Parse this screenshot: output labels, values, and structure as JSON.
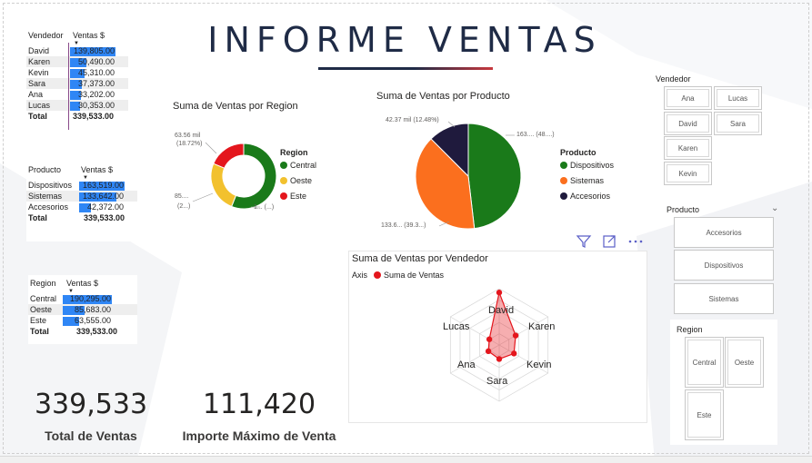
{
  "title": "INFORME VENTAS",
  "vendedor_table": {
    "col1": "Vendedor",
    "col2": "Ventas $",
    "rows": [
      {
        "label": "David",
        "value": "139,805.00",
        "frac": 1.0
      },
      {
        "label": "Karen",
        "value": "50,490.00",
        "frac": 0.361
      },
      {
        "label": "Kevin",
        "value": "45,310.00",
        "frac": 0.324
      },
      {
        "label": "Sara",
        "value": "37,373.00",
        "frac": 0.267
      },
      {
        "label": "Ana",
        "value": "33,202.00",
        "frac": 0.237
      },
      {
        "label": "Lucas",
        "value": "30,353.00",
        "frac": 0.217
      }
    ],
    "total_label": "Total",
    "total_value": "339,533.00"
  },
  "producto_table": {
    "col1": "Producto",
    "col2": "Ventas $",
    "rows": [
      {
        "label": "Dispositivos",
        "value": "163,519.00",
        "frac": 1.0
      },
      {
        "label": "Sistemas",
        "value": "133,642.00",
        "frac": 0.817
      },
      {
        "label": "Accesorios",
        "value": "42,372.00",
        "frac": 0.259
      }
    ],
    "total_label": "Total",
    "total_value": "339,533.00"
  },
  "region_table": {
    "col1": "Region",
    "col2": "Ventas $",
    "rows": [
      {
        "label": "Central",
        "value": "190,295.00",
        "frac": 1.0
      },
      {
        "label": "Oeste",
        "value": "85,683.00",
        "frac": 0.45
      },
      {
        "label": "Este",
        "value": "63,555.00",
        "frac": 0.334
      }
    ],
    "total_label": "Total",
    "total_value": "339,533.00"
  },
  "region_chart": {
    "title": "Suma de Ventas por Region",
    "legend_title": "Region",
    "label_este": "63.56 mil",
    "label_este_pct": "(18.72%)",
    "label_oeste": "85....",
    "label_oeste_pct": "(2...)",
    "label_central": "1... (...)"
  },
  "producto_chart": {
    "title": "Suma de Ventas por Producto",
    "legend_title": "Producto",
    "label_accesorios": "42.37 mil (12.48%)",
    "label_dispositivos": "163.... (48....)",
    "label_sistemas": "133.6... (39.3...)"
  },
  "radar_chart": {
    "title": "Suma de Ventas por Vendedor",
    "legend_axis": "Axis",
    "legend_series": "Suma de Ventas"
  },
  "cards": [
    {
      "value": "339,533",
      "label": "Total de Ventas"
    },
    {
      "value": "111,420",
      "label": "Importe Máximo de Venta"
    }
  ],
  "slicers": {
    "vendedor_title": "Vendedor",
    "vendedor_items": [
      "Ana",
      "Lucas",
      "David",
      "Sara",
      "Karen",
      "Kevin"
    ],
    "producto_title": "Producto",
    "producto_items": [
      "Accesorios",
      "Dispositivos",
      "Sistemas"
    ],
    "region_title": "Region",
    "region_items": [
      "Central",
      "Oeste",
      "Este"
    ]
  },
  "chart_data": [
    {
      "type": "pie",
      "title": "Suma de Ventas por Region",
      "categories": [
        "Central",
        "Oeste",
        "Este"
      ],
      "values": [
        190295,
        85683,
        63555
      ],
      "colors": [
        "#1a7a1a",
        "#f2c12e",
        "#e4161d"
      ],
      "legend": "right",
      "donut": true
    },
    {
      "type": "pie",
      "title": "Suma de Ventas por Producto",
      "categories": [
        "Dispositivos",
        "Sistemas",
        "Accesorios"
      ],
      "values": [
        163519,
        133642,
        42372
      ],
      "colors": [
        "#1a7a1a",
        "#fb6f1e",
        "#1f1a3d"
      ],
      "legend": "right"
    },
    {
      "type": "radar",
      "title": "Suma de Ventas por Vendedor",
      "categories": [
        "David",
        "Karen",
        "Kevin",
        "Sara",
        "Ana",
        "Lucas"
      ],
      "series": [
        {
          "name": "Suma de Ventas",
          "values": [
            139805,
            50490,
            45310,
            37373,
            33202,
            30353
          ]
        }
      ],
      "color": "#e4161d"
    }
  ]
}
